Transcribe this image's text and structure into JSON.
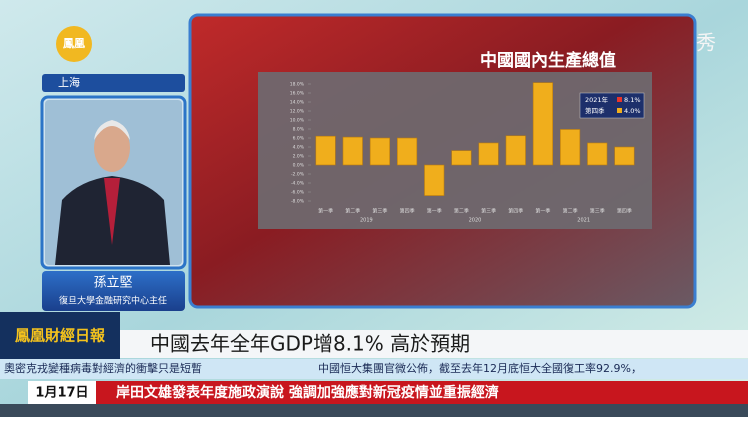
{
  "screen": {
    "logo": {
      "text": "鳳凰"
    },
    "watermark": "鳳凰秀",
    "location": "上海",
    "guest": {
      "name": "孫立堅",
      "title": "復旦大學金融研究中心主任"
    },
    "show_logo": {
      "text": "鳳凰財經日報"
    },
    "headline": "中國去年全年GDP增8.1% 高於預期",
    "ticker": [
      "奧密克戎變種病毒對經濟的衝擊只是短暫",
      "中國恒大集團官微公佈，截至去年12月底恒大全國復工率92.9%，"
    ],
    "bottom": {
      "date": "1月17日",
      "text": "岸田文雄發表年度施政演說 強調加強應對新冠疫情並重振經濟"
    },
    "chart": {
      "type": "bar",
      "title": "中國國內生產總值",
      "categories": [
        "第一季",
        "第二季",
        "第三季",
        "第四季",
        "第一季",
        "第二季",
        "第三季",
        "第四季",
        "第一季",
        "第二季",
        "第三季",
        "第四季"
      ],
      "years": [
        "2019",
        "2020",
        "2021"
      ],
      "values": [
        6.4,
        6.2,
        6.0,
        6.0,
        -6.8,
        3.2,
        4.9,
        6.5,
        18.3,
        7.9,
        4.9,
        4.0
      ],
      "color": "#f0ae1c",
      "ylim": [
        -8,
        18
      ],
      "yticks": [
        {
          "value": 18,
          "label": "18.0%"
        },
        {
          "value": 16,
          "label": "16.0%"
        },
        {
          "value": 14,
          "label": "14.0%"
        },
        {
          "value": 12,
          "label": "12.0%"
        },
        {
          "value": 10,
          "label": "10.0%"
        },
        {
          "value": 8,
          "label": "8.0%"
        },
        {
          "value": 6,
          "label": "6.0%"
        },
        {
          "value": 4,
          "label": "4.0%"
        },
        {
          "value": 2,
          "label": "2.0%"
        },
        {
          "value": 0,
          "label": "0.0%"
        },
        {
          "value": -2,
          "label": "-2.0%"
        },
        {
          "value": -4,
          "label": "-4.0%"
        },
        {
          "value": -6,
          "label": "-6.0%"
        },
        {
          "value": -8,
          "label": "-8.0%"
        }
      ],
      "legend": [
        {
          "label": "2021年",
          "value": "8.1%",
          "color": "#e8342a"
        },
        {
          "label": "第四季",
          "value": "4.0%",
          "color": "#f0ae1c"
        }
      ]
    }
  }
}
